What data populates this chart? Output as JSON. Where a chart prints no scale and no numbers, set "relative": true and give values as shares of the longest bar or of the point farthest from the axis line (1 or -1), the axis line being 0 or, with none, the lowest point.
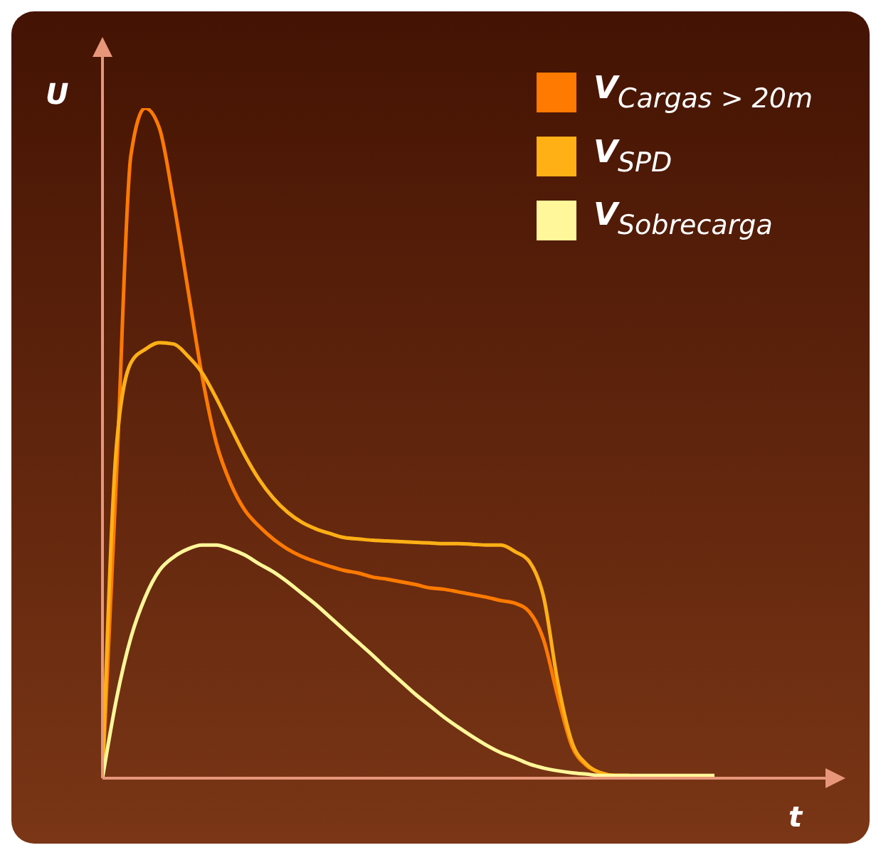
{
  "chart_data": {
    "type": "line",
    "relative": true,
    "xlabel": "t",
    "ylabel": "U",
    "legend": "top right",
    "grid": false,
    "marker": "none",
    "categories": [
      null,
      null,
      null,
      null,
      null,
      null,
      null,
      null,
      null,
      null,
      null,
      null,
      null,
      null,
      null,
      null,
      null,
      null,
      null,
      null,
      null,
      null,
      null,
      null,
      null,
      null,
      null,
      null,
      null,
      null,
      null,
      null,
      null,
      null,
      null,
      null,
      null,
      null,
      null,
      null,
      null,
      null,
      null,
      null
    ],
    "series": [
      {
        "name": "V$_{Cargas > 20m}$",
        "color": "#ff7a00",
        "values": [
          0,
          0.46,
          0.93,
          1,
          0.97,
          0.86,
          0.73,
          0.6,
          0.5,
          0.44,
          0.4,
          0.376,
          0.357,
          0.342,
          0.331,
          0.323,
          0.316,
          0.31,
          0.306,
          0.3,
          0.297,
          0.293,
          0.289,
          0.284,
          0.282,
          0.278,
          0.274,
          0.27,
          0.265,
          0.261,
          0.248,
          0.206,
          0.121,
          0.047,
          0.019,
          0.008,
          0.004,
          0.004,
          null,
          null,
          null,
          null,
          null,
          null
        ]
      },
      {
        "name": "V$_{SPD}$",
        "color": "#ffb015",
        "values": [
          0,
          0.5,
          0.62,
          0.64,
          0.65,
          0.648,
          0.63,
          0.605,
          0.567,
          0.524,
          0.482,
          0.446,
          0.418,
          0.397,
          0.382,
          0.372,
          0.365,
          0.359,
          0.357,
          0.355,
          0.354,
          0.353,
          0.352,
          0.351,
          0.35,
          0.35,
          0.349,
          0.348,
          0.348,
          0.338,
          0.323,
          0.27,
          0.142,
          0.053,
          0.021,
          0.008,
          0.004,
          0.004,
          null,
          null,
          null,
          null,
          null,
          null
        ]
      },
      {
        "name": "V$_{Sobrecarga}$",
        "color": "#fff799",
        "values": [
          0,
          0.12,
          0.21,
          0.27,
          0.31,
          0.33,
          0.342,
          0.348,
          0.348,
          0.342,
          0.333,
          0.32,
          0.308,
          0.293,
          0.276,
          0.259,
          0.24,
          0.221,
          0.202,
          0.183,
          0.163,
          0.144,
          0.125,
          0.108,
          0.091,
          0.076,
          0.062,
          0.049,
          0.038,
          0.03,
          0.021,
          0.015,
          0.011,
          0.008,
          0.006,
          0.004,
          0.004,
          0.004,
          0.004,
          0.004,
          0.004,
          0.004,
          0.004,
          0.004
        ]
      }
    ]
  }
}
